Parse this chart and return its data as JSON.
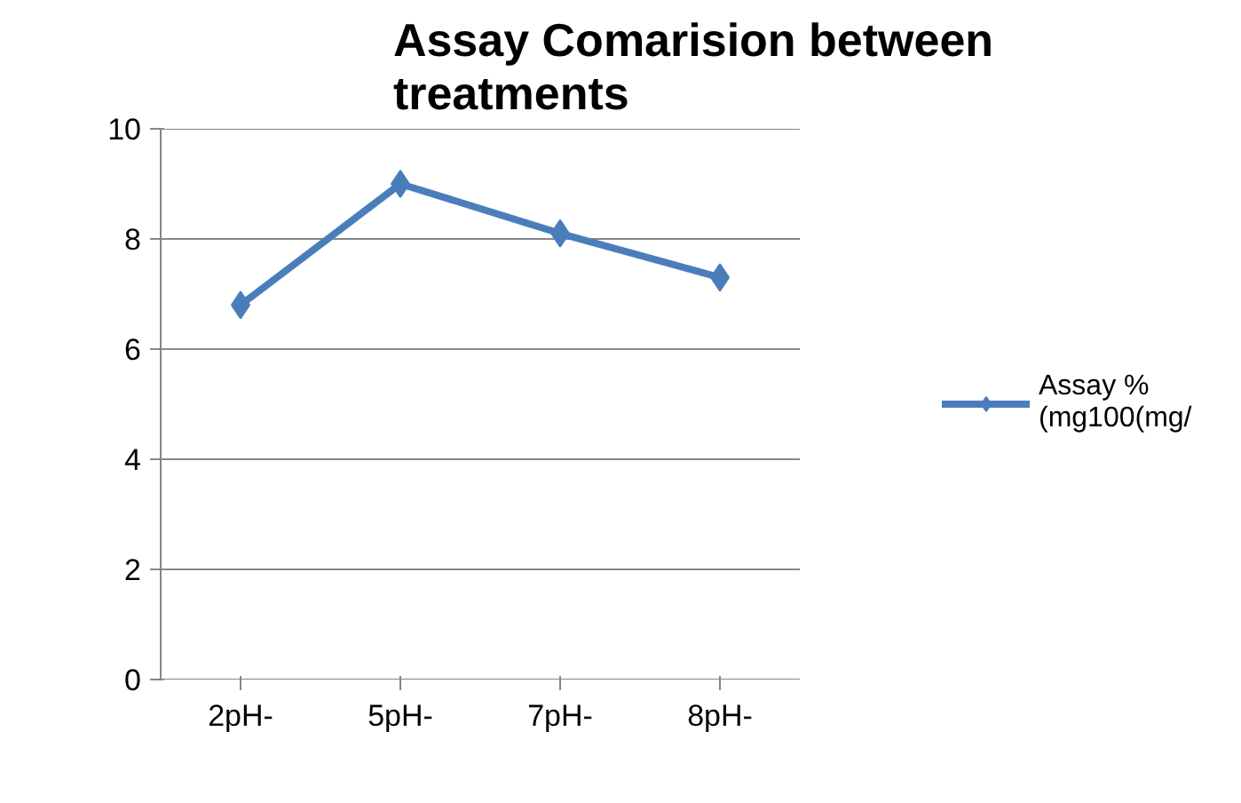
{
  "chart_data": {
    "type": "line",
    "title": "Assay Comarision between treatments",
    "categories": [
      "2pH-",
      "5pH-",
      "7pH-",
      "8pH-"
    ],
    "series": [
      {
        "name": "Assay % (mg100(mg/",
        "color": "#4a7ebb",
        "values": [
          6.8,
          9.0,
          8.1,
          7.3
        ]
      }
    ],
    "ylim": [
      0,
      10
    ],
    "yticks": [
      0,
      2,
      4,
      6,
      8,
      10
    ],
    "grid": "y",
    "legend": "right",
    "marker": "diamond",
    "line_style": "solid"
  }
}
